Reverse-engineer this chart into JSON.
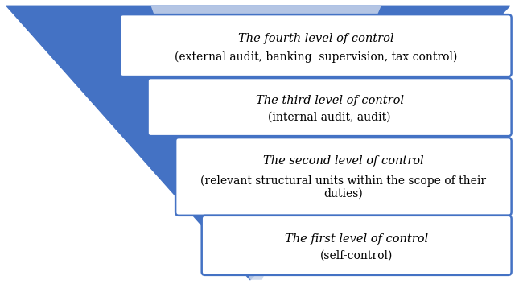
{
  "funnel_color": "#4472C4",
  "funnel_light_color": "#C9D5EA",
  "box_edge": "#4472C4",
  "levels": [
    {
      "title": "The fourth level of control",
      "subtitle": "(external audit, banking  supervision, tax control)",
      "subtitle_lines": 1
    },
    {
      "title": "The third level of control",
      "subtitle": "(internal audit, audit)",
      "subtitle_lines": 1
    },
    {
      "title": "The second level of control",
      "subtitle": "(relevant structural units within the scope of their\nduties)",
      "subtitle_lines": 2
    },
    {
      "title": "The first level of control",
      "subtitle": "(self-control)",
      "subtitle_lines": 1
    }
  ],
  "title_fontsize": 10.5,
  "subtitle_fontsize": 10
}
